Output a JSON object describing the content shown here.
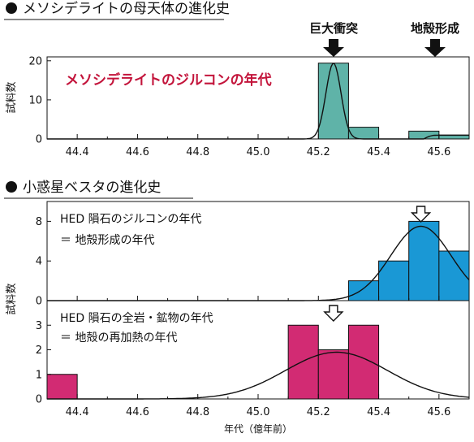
{
  "section1": {
    "title": "メソシデライトの母天体の進化史"
  },
  "section2": {
    "title": "小惑星ベスタの進化史"
  },
  "events": [
    {
      "label": "巨大衝突",
      "x": 45.25
    },
    {
      "label": "地殻形成",
      "x": 45.59
    }
  ],
  "x_axis_label": "年代（億年前）",
  "colors": {
    "teal": "#5fb3a8",
    "blue": "#1a98d5",
    "magenta": "#d22b73",
    "red_text": "#c3143b"
  },
  "chart_data": [
    {
      "type": "bar",
      "annotation": "メソシデライトのジルコンの年代",
      "ylabel": "試料数",
      "xlim": [
        44.3,
        45.7
      ],
      "ylim": [
        0,
        21
      ],
      "xticks": [
        "44.4",
        "44.6",
        "44.8",
        "45.0",
        "45.2",
        "45.4",
        "45.6"
      ],
      "yticks": [
        0,
        10,
        20
      ],
      "bins": [
        {
          "start": 45.2,
          "end": 45.3,
          "count": 19.4
        },
        {
          "start": 45.3,
          "end": 45.4,
          "count": 3
        },
        {
          "start": 45.5,
          "end": 45.6,
          "count": 2
        },
        {
          "start": 45.6,
          "end": 45.7,
          "count": 1
        }
      ],
      "curve": {
        "shape": "normal",
        "mean": 45.25,
        "sd": 0.025,
        "peak": 19.4,
        "baseline_from": 45.55,
        "baseline": 1
      }
    },
    {
      "type": "bar",
      "annotation": [
        "HED 隕石のジルコンの年代",
        "＝ 地殻形成の年代"
      ],
      "ylabel": "試料数",
      "xlim": [
        44.3,
        45.7
      ],
      "ylim": [
        0,
        10
      ],
      "yticks": [
        0,
        4,
        8
      ],
      "bins": [
        {
          "start": 45.3,
          "end": 45.4,
          "count": 2
        },
        {
          "start": 45.4,
          "end": 45.5,
          "count": 4
        },
        {
          "start": 45.5,
          "end": 45.6,
          "count": 8
        },
        {
          "start": 45.6,
          "end": 45.7,
          "count": 5
        }
      ],
      "peak_marker_x": 45.54,
      "curve": {
        "shape": "normal",
        "mean": 45.54,
        "sd": 0.1,
        "peak": 7.5
      }
    },
    {
      "type": "bar",
      "annotation": [
        "HED 隕石の全岩・鉱物の年代",
        "＝ 地殻の再加熱の年代"
      ],
      "ylabel": "試料数",
      "xlabel": "年代（億年前）",
      "xlim": [
        44.3,
        45.7
      ],
      "ylim": [
        0,
        4
      ],
      "xticks": [
        "44.4",
        "44.6",
        "44.8",
        "45.0",
        "45.2",
        "45.4",
        "45.6"
      ],
      "yticks": [
        0,
        1,
        2,
        3
      ],
      "bins": [
        {
          "start": 44.3,
          "end": 44.4,
          "count": 1
        },
        {
          "start": 45.1,
          "end": 45.2,
          "count": 3
        },
        {
          "start": 45.2,
          "end": 45.3,
          "count": 2
        },
        {
          "start": 45.3,
          "end": 45.4,
          "count": 3
        }
      ],
      "peak_marker_x": 45.25,
      "curve": {
        "shape": "normal",
        "mean": 45.26,
        "sd": 0.17,
        "peak": 1.9
      }
    }
  ]
}
